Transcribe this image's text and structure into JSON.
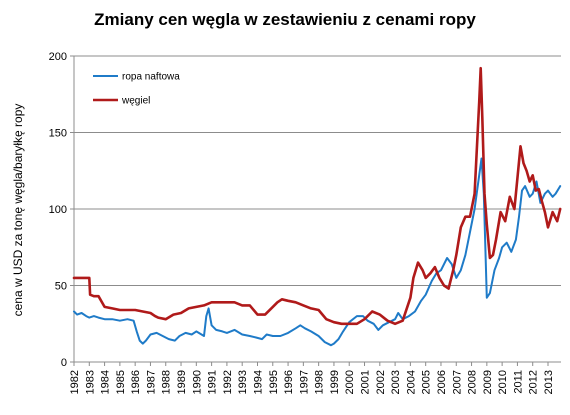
{
  "chart_data": {
    "type": "line",
    "title": "Zmiany cen węgla w zestawieniu z cenami ropy",
    "xlabel": "",
    "ylabel": "cena w USD za tonę węgla/baryłkę ropy",
    "ylim": [
      0,
      200
    ],
    "yticks": [
      0,
      50,
      100,
      150,
      200
    ],
    "xlim": [
      1982,
      2013.85
    ],
    "xticks": [
      1982,
      1983,
      1984,
      1985,
      1986,
      1987,
      1988,
      1989,
      1990,
      1991,
      1992,
      1993,
      1994,
      1995,
      1996,
      1997,
      1998,
      1999,
      2000,
      2001,
      2002,
      2003,
      2004,
      2005,
      2006,
      2007,
      2008,
      2009,
      2010,
      2011,
      2012,
      2013
    ],
    "grid": "horizontal",
    "legend_position": "top-left",
    "series": [
      {
        "name": "ropa naftowa",
        "color": "#1f7bc8",
        "x": [
          1982.0,
          1982.2,
          1982.5,
          1982.8,
          1983.0,
          1983.3,
          1983.6,
          1984.0,
          1984.5,
          1985.0,
          1985.5,
          1985.9,
          1986.1,
          1986.3,
          1986.5,
          1986.7,
          1987.0,
          1987.4,
          1987.8,
          1988.2,
          1988.6,
          1988.9,
          1989.3,
          1989.7,
          1990.0,
          1990.5,
          1990.65,
          1990.8,
          1991.0,
          1991.3,
          1991.7,
          1992.0,
          1992.5,
          1993.0,
          1993.5,
          1993.9,
          1994.3,
          1994.6,
          1995.0,
          1995.5,
          1996.0,
          1996.5,
          1996.8,
          1997.1,
          1997.5,
          1998.0,
          1998.4,
          1998.8,
          1999.0,
          1999.3,
          1999.6,
          2000.0,
          2000.5,
          2000.9,
          2001.2,
          2001.6,
          2001.9,
          2002.2,
          2002.6,
          2003.0,
          2003.2,
          2003.5,
          2003.9,
          2004.3,
          2004.7,
          2005.0,
          2005.4,
          2005.7,
          2006.0,
          2006.4,
          2006.7,
          2007.0,
          2007.3,
          2007.6,
          2007.9,
          2008.2,
          2008.5,
          2008.65,
          2008.8,
          2009.0,
          2009.2,
          2009.5,
          2009.8,
          2010.0,
          2010.3,
          2010.6,
          2010.9,
          2011.1,
          2011.3,
          2011.5,
          2011.8,
          2012.0,
          2012.25,
          2012.5,
          2012.8,
          2013.0,
          2013.3,
          2013.5,
          2013.8
        ],
        "values": [
          33,
          31,
          32,
          30,
          29,
          30,
          29,
          28,
          28,
          27,
          28,
          27,
          20,
          14,
          12,
          14,
          18,
          19,
          17,
          15,
          14,
          17,
          19,
          18,
          20,
          17,
          30,
          35,
          24,
          21,
          20,
          19,
          21,
          18,
          17,
          16,
          15,
          18,
          17,
          17,
          19,
          22,
          24,
          22,
          20,
          17,
          13,
          11,
          12,
          15,
          20,
          26,
          30,
          30,
          27,
          25,
          21,
          24,
          26,
          28,
          32,
          28,
          30,
          33,
          40,
          44,
          53,
          58,
          60,
          68,
          64,
          55,
          60,
          70,
          85,
          100,
          122,
          133,
          110,
          42,
          45,
          60,
          68,
          75,
          78,
          72,
          80,
          95,
          112,
          115,
          108,
          110,
          118,
          104,
          110,
          112,
          108,
          110,
          115
        ]
      },
      {
        "name": "węgiel",
        "color": "#b01a1a",
        "x": [
          1982.0,
          1982.6,
          1982.8,
          1983.0,
          1983.05,
          1983.3,
          1983.6,
          1984.0,
          1984.5,
          1985.0,
          1985.5,
          1986.0,
          1986.5,
          1987.0,
          1987.3,
          1987.5,
          1988.0,
          1988.5,
          1989.0,
          1989.5,
          1990.0,
          1990.5,
          1991.0,
          1991.5,
          1992.0,
          1992.5,
          1993.0,
          1993.5,
          1994.0,
          1994.5,
          1995.0,
          1995.3,
          1995.6,
          1996.0,
          1996.5,
          1997.0,
          1997.5,
          1998.0,
          1998.5,
          1999.0,
          1999.5,
          2000.0,
          2000.5,
          2001.0,
          2001.5,
          2002.0,
          2002.5,
          2003.0,
          2003.5,
          2004.0,
          2004.2,
          2004.5,
          2004.8,
          2005.0,
          2005.3,
          2005.6,
          2005.9,
          2006.2,
          2006.5,
          2006.8,
          2007.0,
          2007.3,
          2007.6,
          2007.9,
          2008.2,
          2008.5,
          2008.6,
          2008.7,
          2008.85,
          2009.0,
          2009.2,
          2009.4,
          2009.6,
          2009.9,
          2010.2,
          2010.5,
          2010.8,
          2011.0,
          2011.2,
          2011.4,
          2011.6,
          2011.8,
          2012.0,
          2012.2,
          2012.4,
          2012.6,
          2012.8,
          2013.0,
          2013.3,
          2013.6,
          2013.8
        ],
        "values": [
          55,
          55,
          55,
          55,
          44,
          43,
          43,
          36,
          35,
          34,
          34,
          34,
          33,
          32,
          30,
          29,
          28,
          31,
          32,
          35,
          36,
          37,
          39,
          39,
          39,
          39,
          37,
          37,
          31,
          31,
          36,
          39,
          41,
          40,
          39,
          37,
          35,
          34,
          28,
          26,
          25,
          25,
          25,
          28,
          33,
          31,
          27,
          25,
          27,
          42,
          55,
          65,
          60,
          55,
          58,
          62,
          55,
          50,
          48,
          60,
          70,
          88,
          95,
          95,
          110,
          170,
          192,
          160,
          110,
          90,
          68,
          70,
          80,
          98,
          92,
          108,
          100,
          120,
          141,
          130,
          125,
          118,
          122,
          112,
          113,
          105,
          98,
          88,
          98,
          92,
          100
        ]
      }
    ]
  }
}
